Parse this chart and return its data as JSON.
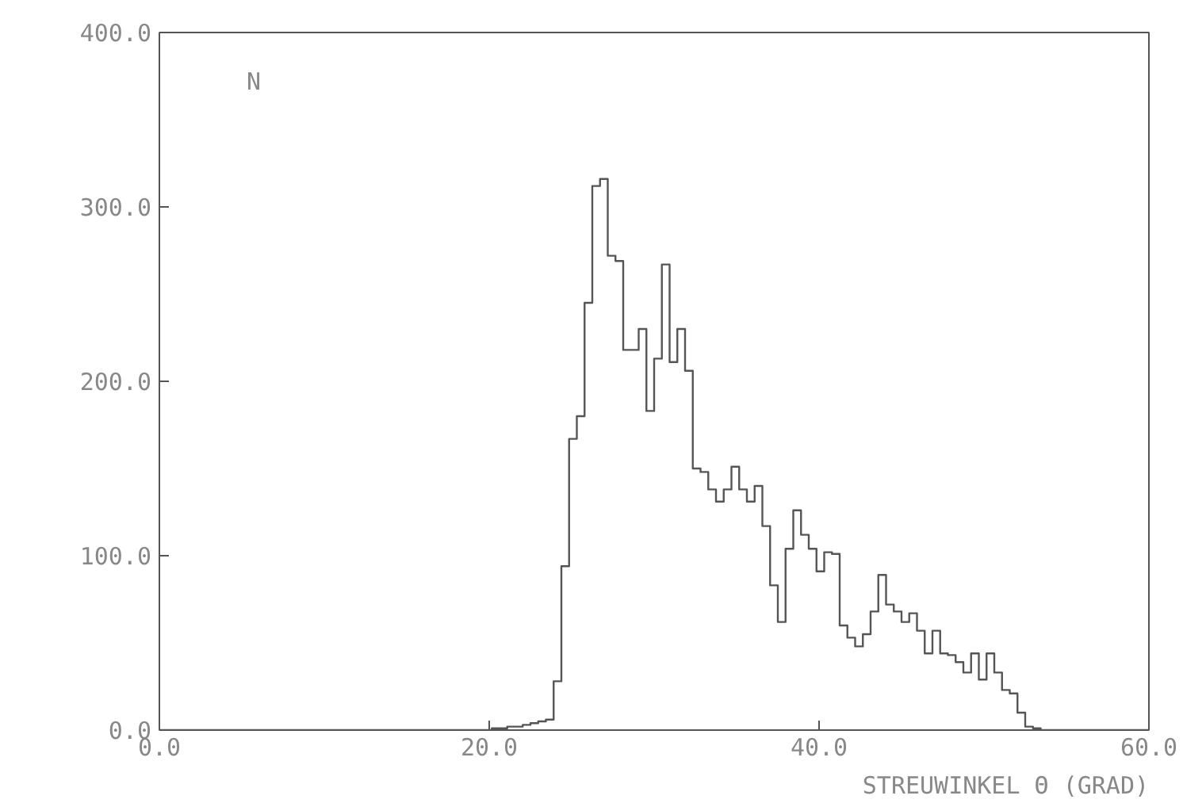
{
  "chart_data": {
    "type": "histogram",
    "xlabel": "STREUWINKEL Θ (GRAD)",
    "ylabel": "N",
    "bins": [
      0,
      0.46875,
      0.9375,
      1.40625,
      1.875,
      2.34375,
      2.8125,
      3.28125,
      3.75,
      4.21875,
      4.6875,
      5.15625,
      5.625,
      6.09375,
      6.5625,
      7.03125,
      7.5,
      7.96875,
      8.4375,
      8.90625,
      9.375,
      9.84375,
      10.3125,
      10.78125,
      11.25,
      11.71875,
      12.1875,
      12.65625,
      13.125,
      13.59375,
      14.0625,
      14.53125,
      15,
      15.46875,
      15.9375,
      16.40625,
      16.875,
      17.34375,
      17.8125,
      18.28125,
      18.75,
      19.21875,
      19.6875,
      20.15625,
      20.625,
      21.09375,
      21.5625,
      22.03125,
      22.5,
      22.96875,
      23.4375,
      23.90625,
      24.375,
      24.84375,
      25.3125,
      25.78125,
      26.25,
      26.71875,
      27.1875,
      27.65625,
      28.125,
      28.59375,
      29.0625,
      29.53125,
      30,
      30.46875,
      30.9375,
      31.40625,
      31.875,
      32.34375,
      32.8125,
      33.28125,
      33.75,
      34.21875,
      34.6875,
      35.15625,
      35.625,
      36.09375,
      36.5625,
      37.03125,
      37.5,
      37.96875,
      38.4375,
      38.90625,
      39.375,
      39.84375,
      40.3125,
      40.78125,
      41.25,
      41.71875,
      42.1875,
      42.65625,
      43.125,
      43.59375,
      44.0625,
      44.53125,
      45,
      45.46875,
      45.9375,
      46.40625,
      46.875,
      47.34375,
      47.8125,
      48.28125,
      48.75,
      49.21875,
      49.6875,
      50.15625,
      50.625,
      51.09375,
      51.5625,
      52.03125,
      52.5,
      52.96875,
      53.4375,
      53.90625,
      54.375,
      54.84375,
      55.3125,
      55.78125,
      56.25,
      56.71875,
      57.1875,
      57.65625,
      58.125,
      58.59375,
      59.0625,
      59.53125,
      60
    ],
    "values": [
      0,
      0,
      0,
      0,
      0,
      0,
      0,
      0,
      0,
      0,
      0,
      0,
      0,
      0,
      0,
      0,
      0,
      0,
      0,
      0,
      0,
      0,
      0,
      0,
      0,
      0,
      0,
      0,
      0,
      0,
      0,
      0,
      0,
      0,
      0,
      0,
      0,
      0,
      0,
      0,
      0,
      0,
      0,
      1,
      1,
      2,
      2,
      3,
      4,
      5,
      6,
      28,
      94,
      167,
      180,
      245,
      312,
      316,
      272,
      269,
      218,
      218,
      230,
      183,
      213,
      267,
      211,
      230,
      206,
      150,
      148,
      138,
      131,
      138,
      151,
      138,
      131,
      140,
      117,
      83,
      62,
      104,
      126,
      112,
      104,
      91,
      102,
      101,
      60,
      53,
      48,
      55,
      68,
      89,
      72,
      68,
      62,
      67,
      57,
      44,
      57,
      44,
      43,
      39,
      33,
      44,
      29,
      44,
      33,
      23,
      21,
      10,
      2,
      1,
      0,
      0,
      0,
      0,
      0,
      0,
      0,
      0,
      0,
      0,
      0,
      0,
      0,
      0
    ],
    "color": "#555555",
    "xlim": [
      0,
      60
    ],
    "ylim": [
      0,
      400
    ],
    "xticks": [
      {
        "value": 0,
        "label": "0.0"
      },
      {
        "value": 20,
        "label": "20.0"
      },
      {
        "value": 40,
        "label": "40.0"
      },
      {
        "value": 60,
        "label": "60.0"
      }
    ],
    "yticks": [
      {
        "value": 0,
        "label": "0.0"
      },
      {
        "value": 100,
        "label": "100.0"
      },
      {
        "value": 200,
        "label": "200.0"
      },
      {
        "value": 300,
        "label": "300.0"
      },
      {
        "value": 400,
        "label": "400.0"
      }
    ],
    "grid": false
  }
}
